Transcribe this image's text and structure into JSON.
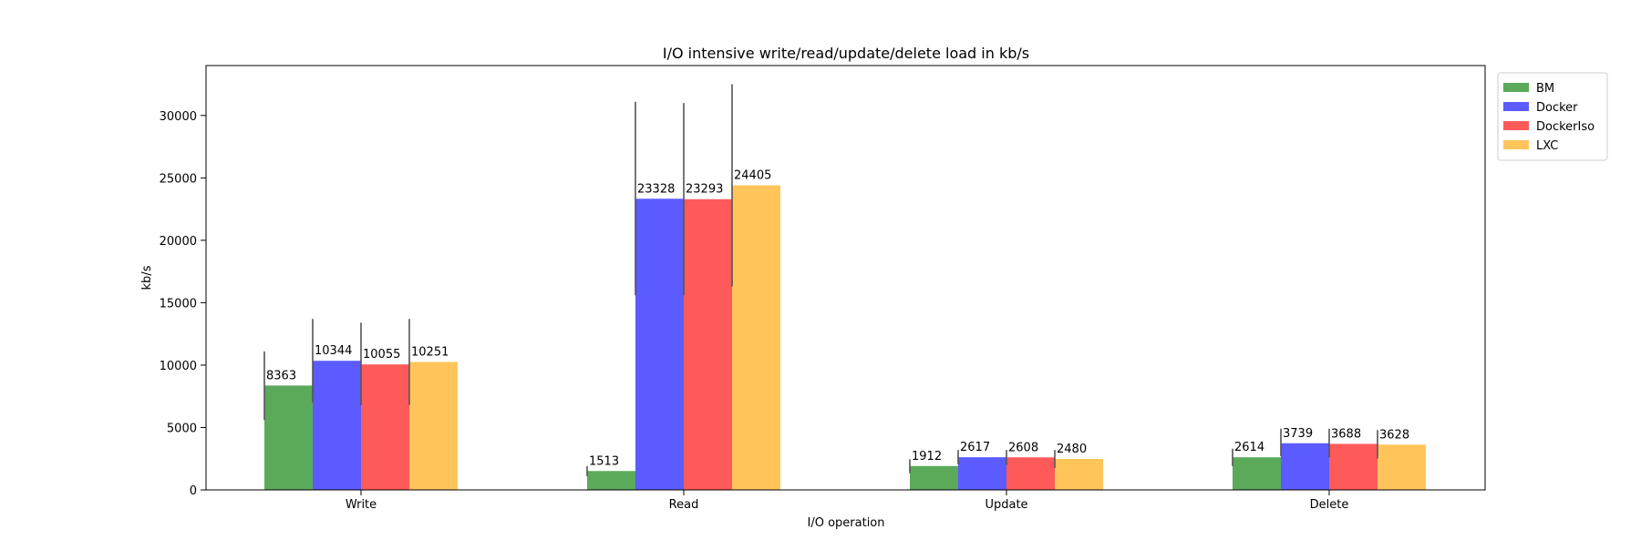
{
  "chart_data": {
    "type": "bar",
    "title": "I/O intensive write/read/update/delete load in kb/s",
    "xlabel": "I/O operation",
    "ylabel": "kb/s",
    "categories": [
      "Write",
      "Read",
      "Update",
      "Delete"
    ],
    "ylim": [
      0,
      34000
    ],
    "yticks": [
      0,
      5000,
      10000,
      15000,
      20000,
      25000,
      30000
    ],
    "grid": false,
    "legend_position": "outside top-right",
    "series": [
      {
        "name": "BM",
        "color": "#5aaa5a",
        "values": [
          8363,
          1513,
          1912,
          2614
        ],
        "error_low": [
          5600,
          1100,
          1350,
          1900
        ],
        "error_high": [
          11100,
          1900,
          2450,
          3300
        ]
      },
      {
        "name": "Docker",
        "color": "#5b5bff",
        "values": [
          10344,
          23328,
          2617,
          3739
        ],
        "error_low": [
          7000,
          15600,
          2050,
          2700
        ],
        "error_high": [
          13700,
          31100,
          3200,
          4900
        ]
      },
      {
        "name": "DockerIso",
        "color": "#ff5a5a",
        "values": [
          10055,
          23293,
          2608,
          3688
        ],
        "error_low": [
          6800,
          15600,
          2000,
          2600
        ],
        "error_high": [
          13400,
          31000,
          3200,
          4900
        ]
      },
      {
        "name": "LXC",
        "color": "#ffc55a",
        "values": [
          10251,
          24405,
          2480,
          3628
        ],
        "error_low": [
          6800,
          16300,
          1750,
          2500
        ],
        "error_high": [
          13700,
          32500,
          3200,
          4800
        ]
      }
    ],
    "labels": [
      [
        "8363",
        "1513",
        "1912",
        "2614"
      ],
      [
        "10344",
        "23328",
        "2617",
        "3739"
      ],
      [
        "10055",
        "23293",
        "2608",
        "3688"
      ],
      [
        "10251",
        "24405",
        "2480",
        "3628"
      ]
    ]
  }
}
